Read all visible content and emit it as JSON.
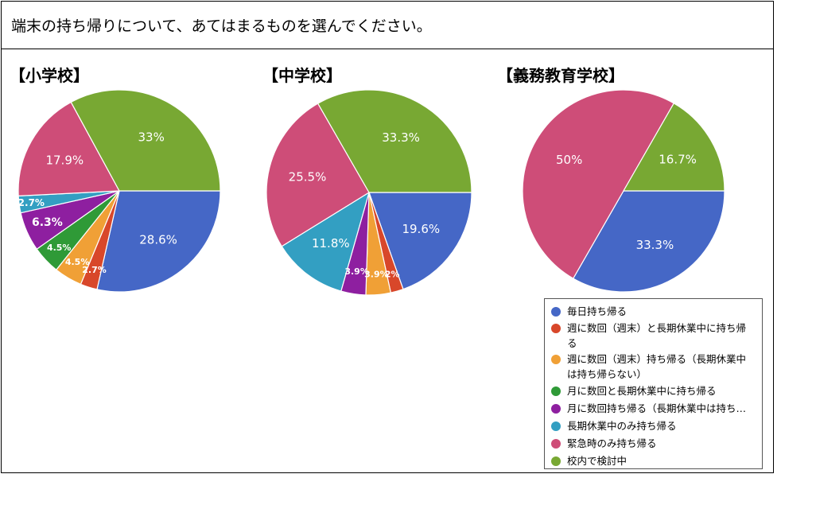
{
  "header": {
    "title": "端末の持ち帰りについて、あてはまるものを選んでください。"
  },
  "legend": [
    {
      "color": "#4567c6",
      "label_lines": [
        "毎日持ち帰る"
      ]
    },
    {
      "color": "#d8472a",
      "label_lines": [
        "週に数回（週末）と長期休業中に持ち帰",
        "る"
      ]
    },
    {
      "color": "#f0a036",
      "label_lines": [
        "週に数回（週末）持ち帰る（長期休業中",
        "は持ち帰らない）"
      ]
    },
    {
      "color": "#2f9a37",
      "label_lines": [
        "月に数回と長期休業中に持ち帰る"
      ]
    },
    {
      "color": "#8e1fa0",
      "label_lines": [
        "月に数回持ち帰る（長期休業中は持ち…"
      ]
    },
    {
      "color": "#339fc2",
      "label_lines": [
        "長期休業中のみ持ち帰る"
      ]
    },
    {
      "color": "#ce4d78",
      "label_lines": [
        "緊急時のみ持ち帰る"
      ]
    },
    {
      "color": "#78a833",
      "label_lines": [
        "校内で検討中"
      ]
    }
  ],
  "chart_data": [
    {
      "type": "pie",
      "title": "【小学校】",
      "slices": [
        {
          "category": "毎日持ち帰る",
          "value": 28.6,
          "label": "28.6%"
        },
        {
          "category": "週に数回（週末）と長期休業中に持ち帰る",
          "value": 2.7,
          "label": "2.7%"
        },
        {
          "category": "週に数回（週末）持ち帰る（長期休業中は持ち帰らない）",
          "value": 4.5,
          "label": "4.5%"
        },
        {
          "category": "月に数回と長期休業中に持ち帰る",
          "value": 4.5,
          "label": "4.5%"
        },
        {
          "category": "月に数回持ち帰る（長期休業中は持ち…",
          "value": 6.3,
          "label": "6.3%"
        },
        {
          "category": "長期休業中のみ持ち帰る",
          "value": 2.7,
          "label": "2.7%"
        },
        {
          "category": "緊急時のみ持ち帰る",
          "value": 17.9,
          "label": "17.9%"
        },
        {
          "category": "校内で検討中",
          "value": 33.0,
          "label": "33%"
        }
      ],
      "legend": "bottom-right"
    },
    {
      "type": "pie",
      "title": "【中学校】",
      "slices": [
        {
          "category": "毎日持ち帰る",
          "value": 19.6,
          "label": "19.6%"
        },
        {
          "category": "週に数回（週末）と長期休業中に持ち帰る",
          "value": 2.0,
          "label": "2%"
        },
        {
          "category": "週に数回（週末）持ち帰る（長期休業中は持ち帰らない）",
          "value": 3.9,
          "label": "3.9%"
        },
        {
          "category": "月に数回と長期休業中に持ち帰る",
          "value": 0,
          "label": ""
        },
        {
          "category": "月に数回持ち帰る（長期休業中は持ち…",
          "value": 3.9,
          "label": "3.9%"
        },
        {
          "category": "長期休業中のみ持ち帰る",
          "value": 11.8,
          "label": "11.8%"
        },
        {
          "category": "緊急時のみ持ち帰る",
          "value": 25.5,
          "label": "25.5%"
        },
        {
          "category": "校内で検討中",
          "value": 33.3,
          "label": "33.3%"
        }
      ],
      "legend": "bottom-right"
    },
    {
      "type": "pie",
      "title": "【義務教育学校】",
      "slices": [
        {
          "category": "毎日持ち帰る",
          "value": 33.3,
          "label": "33.3%"
        },
        {
          "category": "週に数回（週末）と長期休業中に持ち帰る",
          "value": 0,
          "label": ""
        },
        {
          "category": "週に数回（週末）持ち帰る（長期休業中は持ち帰らない）",
          "value": 0,
          "label": ""
        },
        {
          "category": "月に数回と長期休業中に持ち帰る",
          "value": 0,
          "label": ""
        },
        {
          "category": "月に数回持ち帰る（長期休業中は持ち…",
          "value": 0,
          "label": ""
        },
        {
          "category": "長期休業中のみ持ち帰る",
          "value": 0,
          "label": ""
        },
        {
          "category": "緊急時のみ持ち帰る",
          "value": 50.0,
          "label": "50%"
        },
        {
          "category": "校内で検討中",
          "value": 16.7,
          "label": "16.7%"
        }
      ],
      "legend": "bottom-right"
    }
  ]
}
